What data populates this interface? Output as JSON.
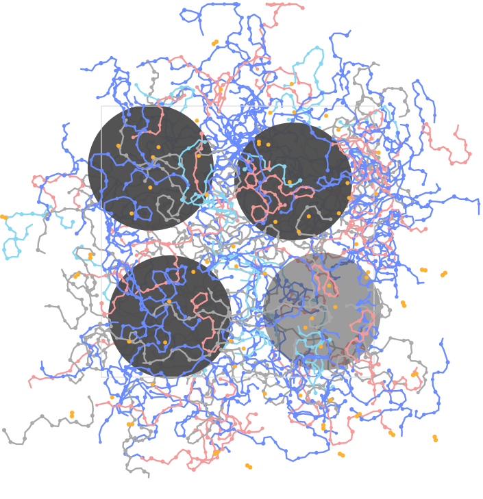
{
  "scene": {
    "colors": {
      "background": "#ffffff",
      "sphere": "#4a4a4a",
      "box_outline": "#dcdcdc",
      "chain_blue": "#6b8cff",
      "chain_gray": "#a9a9a9",
      "chain_pink": "#f59a9a",
      "chain_cyan": "#87d7f2",
      "ions_orange": "#ffb02e"
    },
    "counts": {
      "spheres": 4,
      "free_ions": "many"
    }
  }
}
